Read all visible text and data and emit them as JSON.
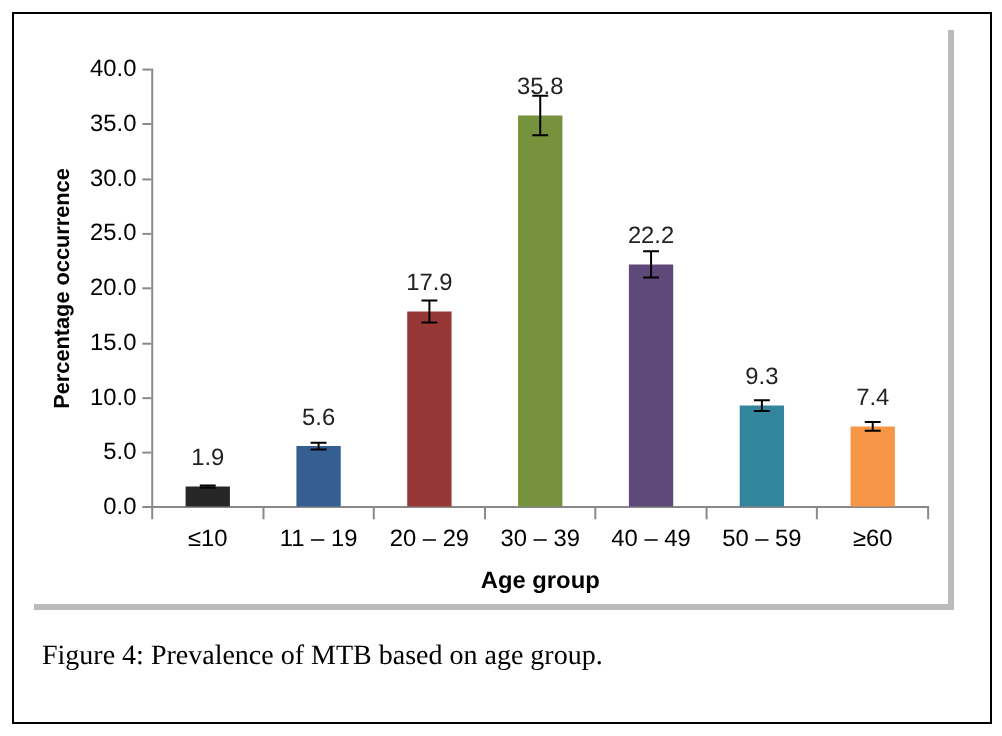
{
  "chart_data": {
    "type": "bar",
    "xlabel": "Age group",
    "ylabel": "Percentage occurrence",
    "categories": [
      "≤10",
      "11 – 19",
      "20 – 29",
      "30 – 39",
      "40 – 49",
      "50 – 59",
      "≥60"
    ],
    "values": [
      1.9,
      5.6,
      17.9,
      35.8,
      22.2,
      9.3,
      7.4
    ],
    "colors": [
      "#262626",
      "#355e91",
      "#953735",
      "#76923c",
      "#5f497a",
      "#31859c",
      "#f79646"
    ],
    "errors": [
      0.1,
      0.3,
      1.0,
      1.8,
      1.2,
      0.5,
      0.4
    ],
    "ylim": [
      0,
      40
    ],
    "yticks": [
      {
        "value": 0,
        "label": "0.0"
      },
      {
        "value": 5,
        "label": "5.0"
      },
      {
        "value": 10,
        "label": "10.0"
      },
      {
        "value": 15,
        "label": "15.0"
      },
      {
        "value": 20,
        "label": "20.0"
      },
      {
        "value": 25,
        "label": "25.0"
      },
      {
        "value": 30,
        "label": "30.0"
      },
      {
        "value": 35,
        "label": "35.0"
      },
      {
        "value": 40,
        "label": "40.0"
      }
    ],
    "data_labels": true,
    "grid": false,
    "legend": false,
    "annotations": [
      "Figure 4: Prevalence of MTB based on age group."
    ]
  }
}
